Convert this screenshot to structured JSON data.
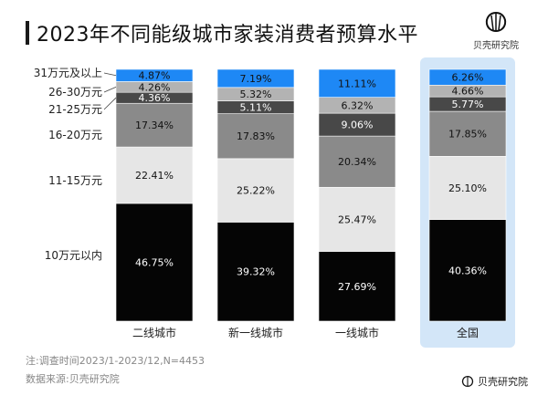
{
  "title": "2023年不同能级城市家装消费者预算水平",
  "brand": "贝壳研究院",
  "note": "注:调查时间2023/1-2023/12,N=4453",
  "source": "数据来源:贝壳研究院",
  "colors": {
    "31万元及以上": "#1e88f5",
    "26-30万元": "#b3b3b3",
    "21-25万元": "#484848",
    "16-20万元": "#8a8a8a",
    "11-15万元": "#e6e6e6",
    "10万元以内": "#050505",
    "highlight": "#d3e6f8"
  },
  "chart_data": {
    "type": "bar",
    "stacked": true,
    "categories": [
      "二线城市",
      "新一线城市",
      "一线城市",
      "全国"
    ],
    "highlight_category": "全国",
    "series": [
      {
        "name": "10万元以内",
        "values": [
          46.75,
          39.32,
          27.69,
          40.36
        ]
      },
      {
        "name": "11-15万元",
        "values": [
          22.41,
          25.22,
          25.47,
          25.1
        ]
      },
      {
        "name": "16-20万元",
        "values": [
          17.34,
          17.83,
          20.34,
          17.85
        ]
      },
      {
        "name": "21-25万元",
        "values": [
          4.36,
          5.11,
          9.06,
          5.77
        ]
      },
      {
        "name": "26-30万元",
        "values": [
          4.26,
          5.32,
          6.32,
          4.66
        ]
      },
      {
        "name": "31万元及以上",
        "values": [
          4.87,
          7.19,
          11.11,
          6.26
        ]
      }
    ],
    "value_labels": [
      [
        "46.75%",
        "39.32%",
        "27.69%",
        "40.36%"
      ],
      [
        "22.41%",
        "25.22%",
        "25.47%",
        "25.10%"
      ],
      [
        "17.34%",
        "17.83%",
        "20.34%",
        "17.85%"
      ],
      [
        "4.36%",
        "5.11%",
        "9.06%",
        "5.77%"
      ],
      [
        "4.26%",
        "5.32%",
        "6.32%",
        "4.66%"
      ],
      [
        "4.87%",
        "7.19%",
        "11.11%",
        "6.26%"
      ]
    ],
    "legend_placement": "left",
    "grid": false
  }
}
